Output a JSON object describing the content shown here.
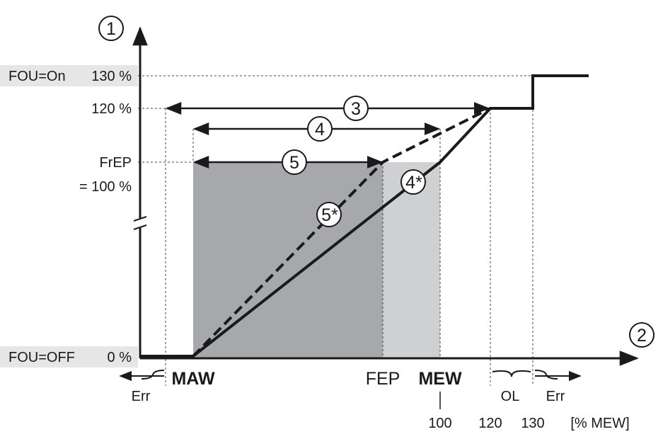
{
  "y_labels": {
    "fou_on": "FOU=On",
    "pct_130": "130 %",
    "pct_120": "120 %",
    "frep": "FrEP",
    "eq_100": "= 100 %",
    "fou_off": "FOU=OFF",
    "pct_0": "0 %"
  },
  "x_labels": {
    "maw": "MAW",
    "fep": "FEP",
    "mew": "MEW",
    "tick_100": "100",
    "tick_120": "120",
    "tick_130": "130",
    "unit": "[% MEW]",
    "err_left": "Err",
    "ol": "OL",
    "err_right": "Err"
  },
  "callouts": {
    "y_axis": "1",
    "x_axis": "2",
    "span_3": "3",
    "span_4": "4",
    "span_5": "5",
    "curve_4": "4*",
    "curve_5": "5*"
  },
  "colors": {
    "dark_region": "#a7a8ab",
    "light_region": "#cfd0d2",
    "label_bg": "#e6e6e6",
    "line": "#1a1a1a"
  }
}
